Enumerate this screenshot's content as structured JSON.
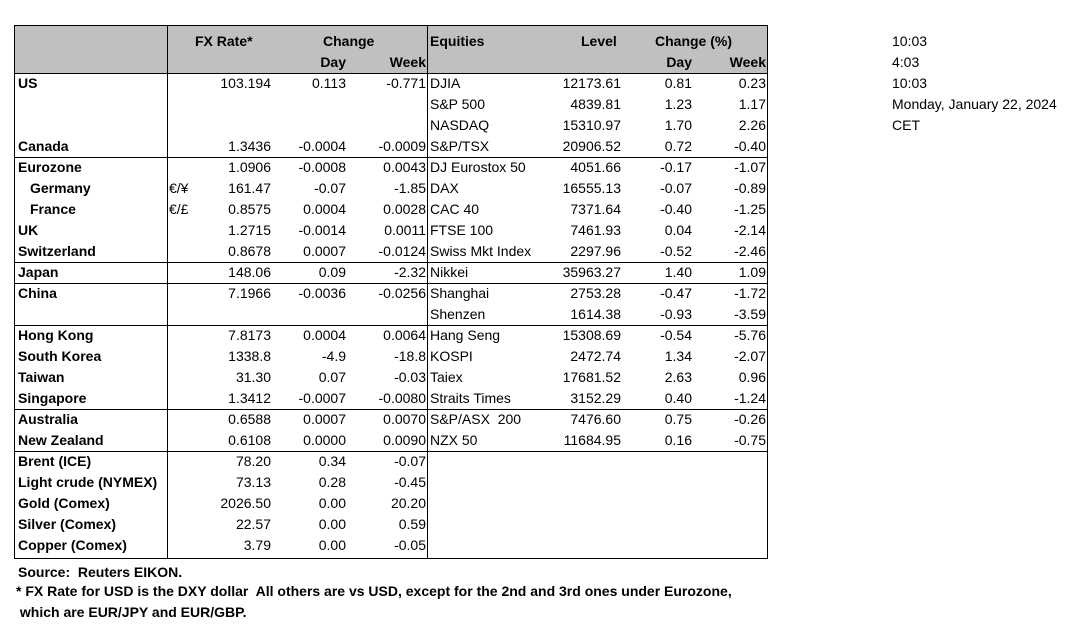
{
  "table": {
    "header": {
      "fx": "FX Rate*",
      "change": "Change",
      "equities": "Equities",
      "level": "Level",
      "change_pct": "Change (%)",
      "fx_day": "Day",
      "fx_week": "Week",
      "eq_day": "Day",
      "eq_week": "Week"
    },
    "rows": [
      {
        "region": "US",
        "fx": "103.194",
        "fx_day": "0.113",
        "fx_week": "-0.771",
        "equity": "DJIA",
        "level": "12173.61",
        "eq_day": "0.81",
        "eq_week": "0.23"
      },
      {
        "equity": "S&P 500",
        "level": "4839.81",
        "eq_day": "1.23",
        "eq_week": "1.17"
      },
      {
        "equity": "NASDAQ",
        "level": "15310.97",
        "eq_day": "1.70",
        "eq_week": "2.26"
      },
      {
        "region": "Canada",
        "fx": "1.3436",
        "fx_day": "-0.0004",
        "fx_week": "-0.0009",
        "equity": "S&P/TSX",
        "level": "20906.52",
        "eq_day": "0.72",
        "eq_week": "-0.40"
      },
      {
        "region": "Eurozone",
        "fx": "1.0906",
        "fx_day": "-0.0008",
        "fx_week": "0.0043",
        "equity": "DJ Eurostox 50",
        "level": "4051.66",
        "eq_day": "-0.17",
        "eq_week": "-1.07"
      },
      {
        "region": "Germany",
        "note": "€/¥",
        "fx": "161.47",
        "fx_day": "-0.07",
        "fx_week": "-1.85",
        "equity": "DAX",
        "level": "16555.13",
        "eq_day": "-0.07",
        "eq_week": "-0.89"
      },
      {
        "region": "France",
        "note": "€/£",
        "fx": "0.8575",
        "fx_day": "0.0004",
        "fx_week": "0.0028",
        "equity": "CAC 40",
        "level": "7371.64",
        "eq_day": "-0.40",
        "eq_week": "-1.25"
      },
      {
        "region": "UK",
        "fx": "1.2715",
        "fx_day": "-0.0014",
        "fx_week": "0.0011",
        "equity": "FTSE 100",
        "level": "7461.93",
        "eq_day": "0.04",
        "eq_week": "-2.14"
      },
      {
        "region": "Switzerland",
        "fx": "0.8678",
        "fx_day": "0.0007",
        "fx_week": "-0.0124",
        "equity": "Swiss Mkt Index",
        "level": "2297.96",
        "eq_day": "-0.52",
        "eq_week": "-2.46"
      },
      {
        "region": "Japan",
        "fx": "148.06",
        "fx_day": "0.09",
        "fx_week": "-2.32",
        "equity": "Nikkei",
        "level": "35963.27",
        "eq_day": "1.40",
        "eq_week": "1.09"
      },
      {
        "region": "China",
        "fx": "7.1966",
        "fx_day": "-0.0036",
        "fx_week": "-0.0256",
        "equity": "Shanghai",
        "level": "2753.28",
        "eq_day": "-0.47",
        "eq_week": "-1.72"
      },
      {
        "equity": "Shenzen",
        "level": "1614.38",
        "eq_day": "-0.93",
        "eq_week": "-3.59"
      },
      {
        "region": "Hong Kong",
        "fx": "7.8173",
        "fx_day": "0.0004",
        "fx_week": "0.0064",
        "equity": "Hang Seng",
        "level": "15308.69",
        "eq_day": "-0.54",
        "eq_week": "-5.76"
      },
      {
        "region": "South Korea",
        "fx": "1338.8",
        "fx_day": "-4.9",
        "fx_week": "-18.8",
        "equity": "KOSPI",
        "level": "2472.74",
        "eq_day": "1.34",
        "eq_week": "-2.07"
      },
      {
        "region": "Taiwan",
        "fx": "31.30",
        "fx_day": "0.07",
        "fx_week": "-0.03",
        "equity": "Taiex",
        "level": "17681.52",
        "eq_day": "2.63",
        "eq_week": "0.96"
      },
      {
        "region": "Singapore",
        "fx": "1.3412",
        "fx_day": "-0.0007",
        "fx_week": "-0.0080",
        "equity": "Straits Times",
        "level": "3152.29",
        "eq_day": "0.40",
        "eq_week": "-1.24"
      },
      {
        "region": "Australia",
        "fx": "0.6588",
        "fx_day": "0.0007",
        "fx_week": "0.0070",
        "equity": "S&P/ASX  200",
        "level": "7476.60",
        "eq_day": "0.75",
        "eq_week": "-0.26"
      },
      {
        "region": "New Zealand",
        "fx": "0.6108",
        "fx_day": "0.0000",
        "fx_week": "0.0090",
        "equity": "NZX 50",
        "level": "11684.95",
        "eq_day": "0.16",
        "eq_week": "-0.75"
      },
      {
        "region": "Brent (ICE)",
        "fx": "78.20",
        "fx_day": "0.34",
        "fx_week": "-0.07"
      },
      {
        "region": "Light crude (NYMEX)",
        "fx": "73.13",
        "fx_day": "0.28",
        "fx_week": "-0.45"
      },
      {
        "region": "Gold (Comex)",
        "fx": "2026.50",
        "fx_day": "0.00",
        "fx_week": "20.20"
      },
      {
        "region": "Silver (Comex)",
        "fx": "22.57",
        "fx_day": "0.00",
        "fx_week": "0.59"
      },
      {
        "region": "Copper (Comex)",
        "fx": "3.79",
        "fx_day": "0.00",
        "fx_week": "-0.05"
      }
    ]
  },
  "times": [
    "10:03",
    "4:03",
    "10:03",
    "Monday, January 22, 2024",
    "CET"
  ],
  "footer": {
    "source": "Source:  Reuters EIKON.",
    "note1": "* FX Rate for USD is the DXY dollar  All others are vs USD, except for the 2nd and 3rd ones under Eurozone,",
    "note2": " which are EUR/JPY and EUR/GBP."
  }
}
